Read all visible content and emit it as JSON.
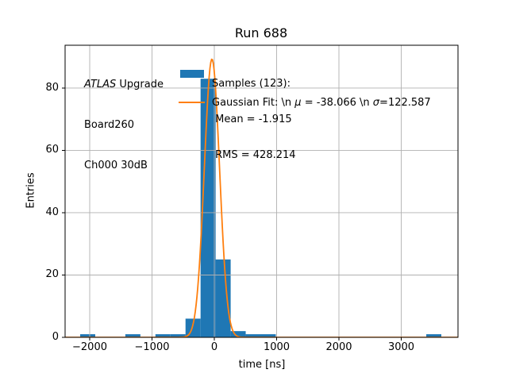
{
  "title": "Run 688",
  "axis": {
    "xlabel": "time [ns]",
    "ylabel": "Entries",
    "xtick_labels": [
      "−2000",
      "−1000",
      "0",
      "1000",
      "2000",
      "3000"
    ],
    "ytick_labels": [
      "0",
      "20",
      "40",
      "60",
      "80"
    ]
  },
  "annotation": {
    "experiment": "ATLAS",
    "experiment_suffix": " Upgrade",
    "board": "Board260",
    "channel": "Ch000 30dB"
  },
  "legend": {
    "samples_line1": "Samples (123):",
    "samples_line2": " Mean = -1.915",
    "samples_line3": " RMS = 428.214",
    "gaussian_prefix": "Gaussian Fit: \\n ",
    "gaussian_mu_symbol": "μ",
    "gaussian_mu_value": " = -38.066 \\n ",
    "gaussian_sigma_symbol": "σ",
    "gaussian_sigma_value": "=122.587"
  },
  "chart_data": {
    "type": "bar",
    "subtype": "histogram-with-gaussian-fit",
    "title": "Run 688",
    "xlabel": "time [ns]",
    "ylabel": "Entries",
    "xlim": [
      -2395,
      3911
    ],
    "ylim": [
      0,
      93.75
    ],
    "xticks": [
      -2000,
      -1000,
      0,
      1000,
      2000,
      3000
    ],
    "yticks": [
      0,
      20,
      40,
      60,
      80
    ],
    "grid": true,
    "legend_position": "upper-center-frameless",
    "colors": {
      "bar": "#1f77b4",
      "fit_line": "#ff7f0e",
      "grid": "#b0b0b0",
      "axes": "#000000"
    },
    "bin_edges": [
      -2152.6,
      -1911.1,
      -1669.6,
      -1428.1,
      -1186.6,
      -945.1,
      -703.6,
      -462.1,
      -220.6,
      20.9,
      262.4,
      503.9,
      745.4,
      986.9,
      1228.4,
      1469.9,
      1711.4,
      1952.9,
      2194.4,
      2435.9,
      2677.4,
      2918.9,
      3160.4,
      3401.9,
      3643.4
    ],
    "counts": [
      1,
      0,
      0,
      1,
      0,
      1,
      1,
      6,
      83,
      25,
      2,
      1,
      1,
      0,
      0,
      0,
      0,
      0,
      0,
      0,
      0,
      0,
      0,
      1
    ],
    "hist_stats": {
      "samples": 123,
      "mean": -1.915,
      "rms": 428.214
    },
    "gaussian_fit": {
      "mu": -38.066,
      "sigma": 122.587,
      "amplitude": 89.3
    }
  }
}
